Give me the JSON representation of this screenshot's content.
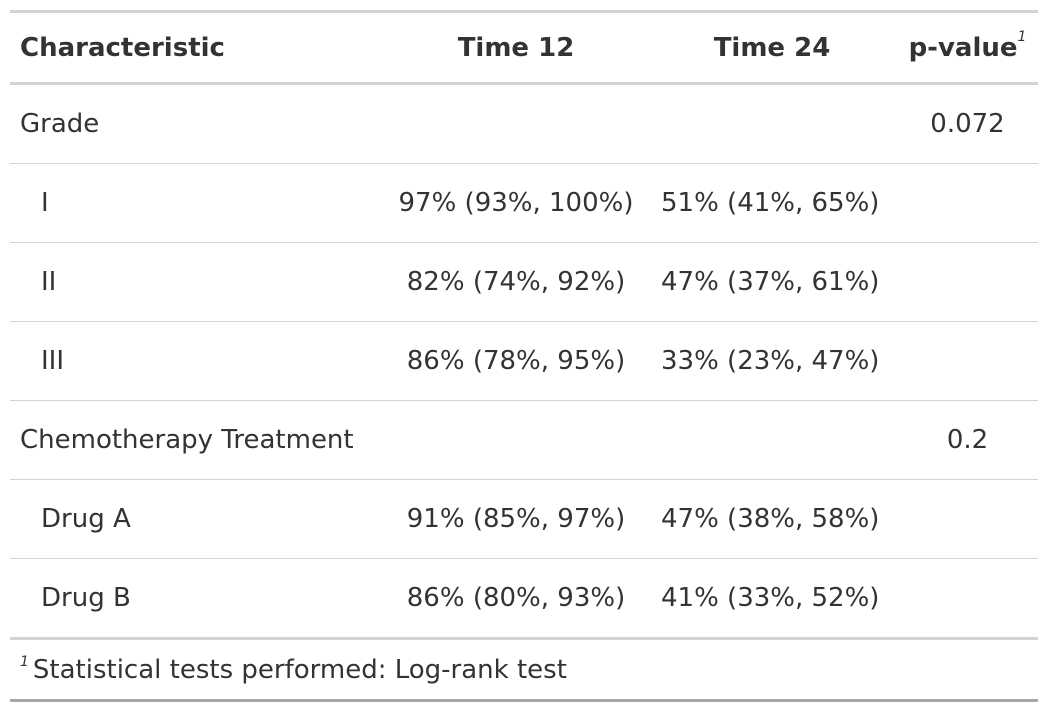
{
  "table": {
    "columns": [
      {
        "label": "Characteristic"
      },
      {
        "label": "Time 12"
      },
      {
        "label": "Time 24"
      },
      {
        "label": "p-value",
        "footnote_mark": "1"
      }
    ],
    "rows": [
      {
        "label": "Grade",
        "time12": "",
        "time24": "",
        "p_value": "0.072"
      },
      {
        "label": "I",
        "time12": "97% (93%, 100%)",
        "time24": "51% (41%, 65%)",
        "p_value": ""
      },
      {
        "label": "II",
        "time12": "82% (74%, 92%)",
        "time24": "47% (37%, 61%)",
        "p_value": ""
      },
      {
        "label": "III",
        "time12": "86% (78%, 95%)",
        "time24": "33% (23%, 47%)",
        "p_value": ""
      },
      {
        "label": "Chemotherapy Treatment",
        "time12": "",
        "time24": "",
        "p_value": "0.2"
      },
      {
        "label": "Drug A",
        "time12": "91% (85%, 97%)",
        "time24": "47% (38%, 58%)",
        "p_value": ""
      },
      {
        "label": "Drug B",
        "time12": "86% (80%, 93%)",
        "time24": "41% (33%, 52%)",
        "p_value": ""
      }
    ],
    "footnote": {
      "mark": "1",
      "text": "Statistical tests performed: Log-rank test"
    }
  }
}
